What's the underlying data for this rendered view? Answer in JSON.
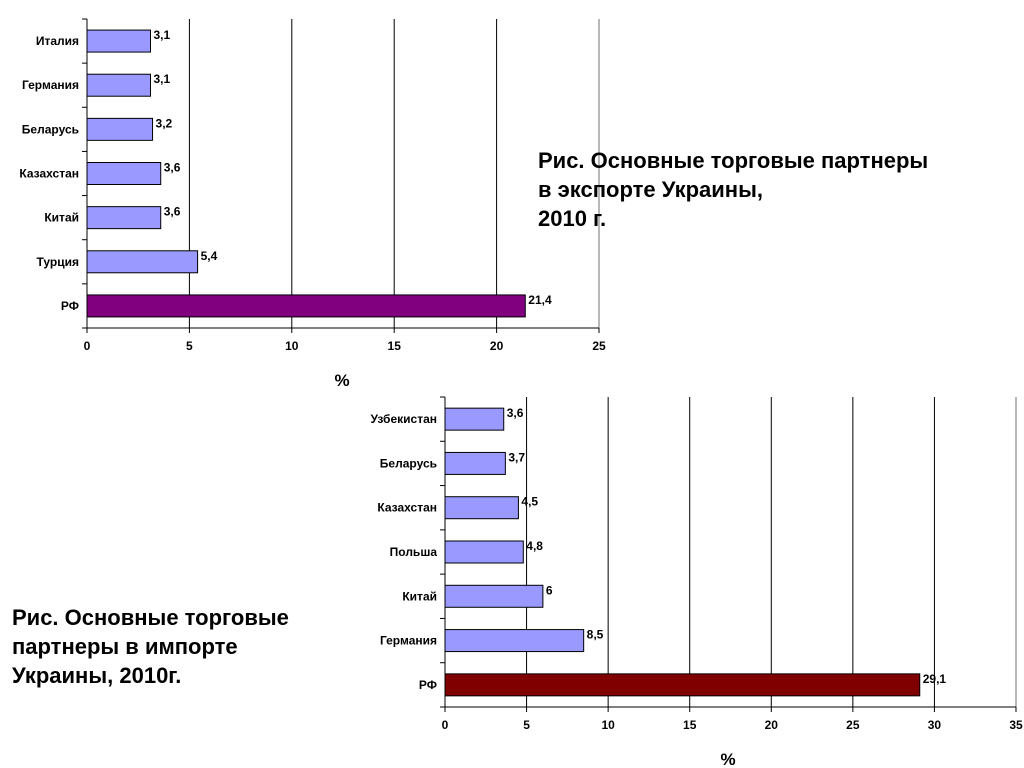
{
  "captions": {
    "export": [
      "Рис. Основные торговые партнеры",
      "в экспорте Украины,",
      "2010 г."
    ],
    "import": [
      "Рис. Основные торговые",
      "партнеры в импорте",
      "Украины, 2010г."
    ]
  },
  "chart_data": [
    {
      "type": "bar",
      "orientation": "horizontal",
      "categories": [
        "Италия",
        "Германия",
        "Беларусь",
        "Казахстан",
        "Китай",
        "Турция",
        "РФ"
      ],
      "values": [
        3.1,
        3.1,
        3.2,
        3.6,
        3.6,
        5.4,
        21.4
      ],
      "value_labels": [
        "3,1",
        "3,1",
        "3,2",
        "3,6",
        "3,6",
        "5,4",
        "21,4"
      ],
      "xlabel": "%",
      "xlim": [
        0,
        25
      ],
      "xticks": [
        0,
        5,
        10,
        15,
        20,
        25
      ],
      "grid": true,
      "colors": {
        "bar": "#9999ff",
        "highlight": "#800080",
        "highlight_category": "РФ"
      }
    },
    {
      "type": "bar",
      "orientation": "horizontal",
      "categories": [
        "Узбекистан",
        "Беларусь",
        "Казахстан",
        "Польша",
        "Китай",
        "Германия",
        "РФ"
      ],
      "values": [
        3.6,
        3.7,
        4.5,
        4.8,
        6,
        8.5,
        29.1
      ],
      "value_labels": [
        "3,6",
        "3,7",
        "4,5",
        "4,8",
        "6",
        "8,5",
        "29,1"
      ],
      "xlabel": "%",
      "xlim": [
        0,
        35
      ],
      "xticks": [
        0,
        5,
        10,
        15,
        20,
        25,
        30,
        35
      ],
      "grid": true,
      "colors": {
        "bar": "#9999ff",
        "highlight": "#800000",
        "highlight_category": "РФ"
      }
    }
  ]
}
